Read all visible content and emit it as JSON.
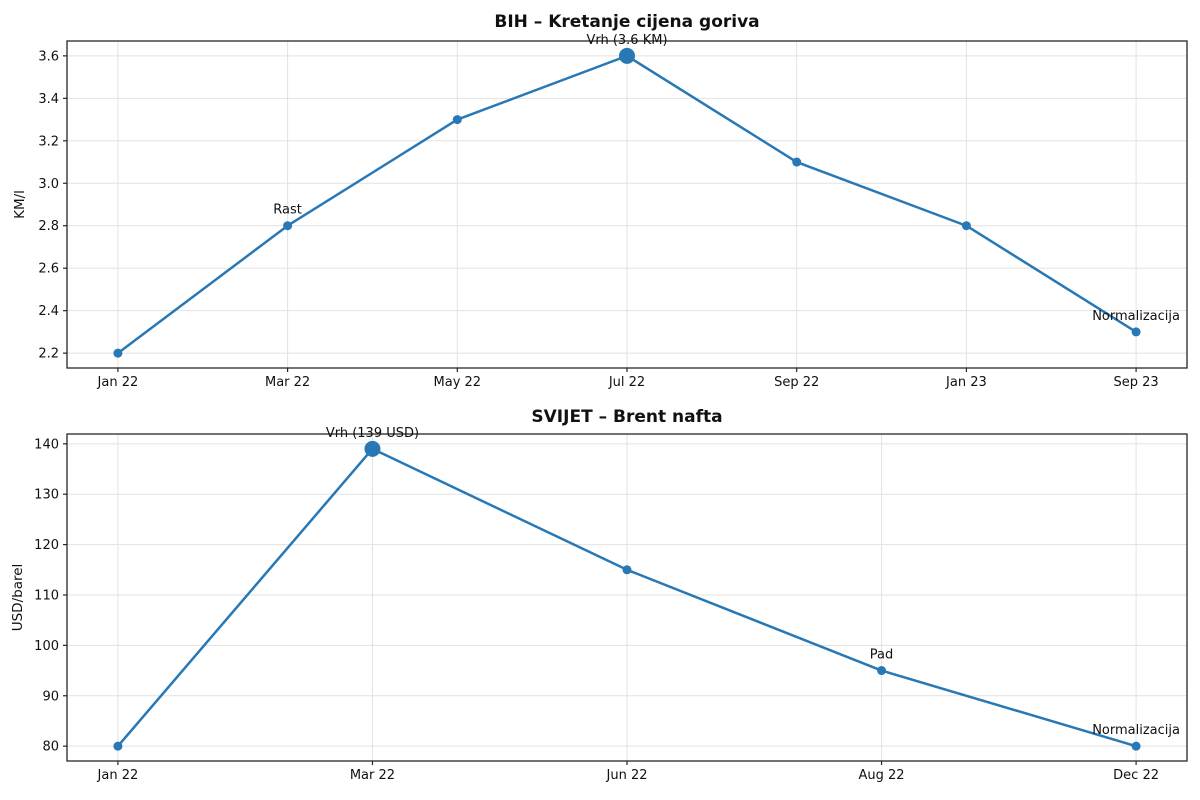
{
  "figure": {
    "background": "#ffffff"
  },
  "style": {
    "line_color": "#2878b5",
    "marker_color": "#2878b5",
    "grid_color": "#e2e2e2",
    "spine_color": "#262626",
    "text_color": "#111111"
  },
  "chart_data": [
    {
      "type": "line",
      "title": "BIH – Kretanje cijena goriva",
      "xlabel": "",
      "ylabel": "KM/l",
      "categories": [
        "Jan 22",
        "Mar 22",
        "May 22",
        "Jul 22",
        "Sep 22",
        "Jan 23",
        "Sep 23"
      ],
      "values": [
        2.2,
        2.8,
        3.3,
        3.6,
        3.1,
        2.8,
        2.3
      ],
      "yticks": [
        2.2,
        2.4,
        2.6,
        2.8,
        3.0,
        3.2,
        3.4,
        3.6
      ],
      "ytick_labels": [
        "2.2",
        "2.4",
        "2.6",
        "2.8",
        "3.0",
        "3.2",
        "3.4",
        "3.6"
      ],
      "ylim": [
        2.13,
        3.67
      ],
      "grid": true,
      "legend": false,
      "annotations": [
        {
          "index": 1,
          "text": "Rast",
          "peak": false
        },
        {
          "index": 3,
          "text": "Vrh (3.6 KM)",
          "peak": true
        },
        {
          "index": 6,
          "text": "Normalizacija",
          "peak": false
        }
      ]
    },
    {
      "type": "line",
      "title": "SVIJET – Brent nafta",
      "xlabel": "",
      "ylabel": "USD/barel",
      "categories": [
        "Jan 22",
        "Mar 22",
        "Jun 22",
        "Aug 22",
        "Dec 22"
      ],
      "values": [
        80,
        139,
        115,
        95,
        80
      ],
      "yticks": [
        80,
        90,
        100,
        110,
        120,
        130,
        140
      ],
      "ytick_labels": [
        "80",
        "90",
        "100",
        "110",
        "120",
        "130",
        "140"
      ],
      "ylim": [
        77.05,
        141.95
      ],
      "grid": true,
      "legend": false,
      "annotations": [
        {
          "index": 1,
          "text": "Vrh (139 USD)",
          "peak": true
        },
        {
          "index": 3,
          "text": "Pad",
          "peak": false
        },
        {
          "index": 4,
          "text": "Normalizacija",
          "peak": false
        }
      ]
    }
  ]
}
